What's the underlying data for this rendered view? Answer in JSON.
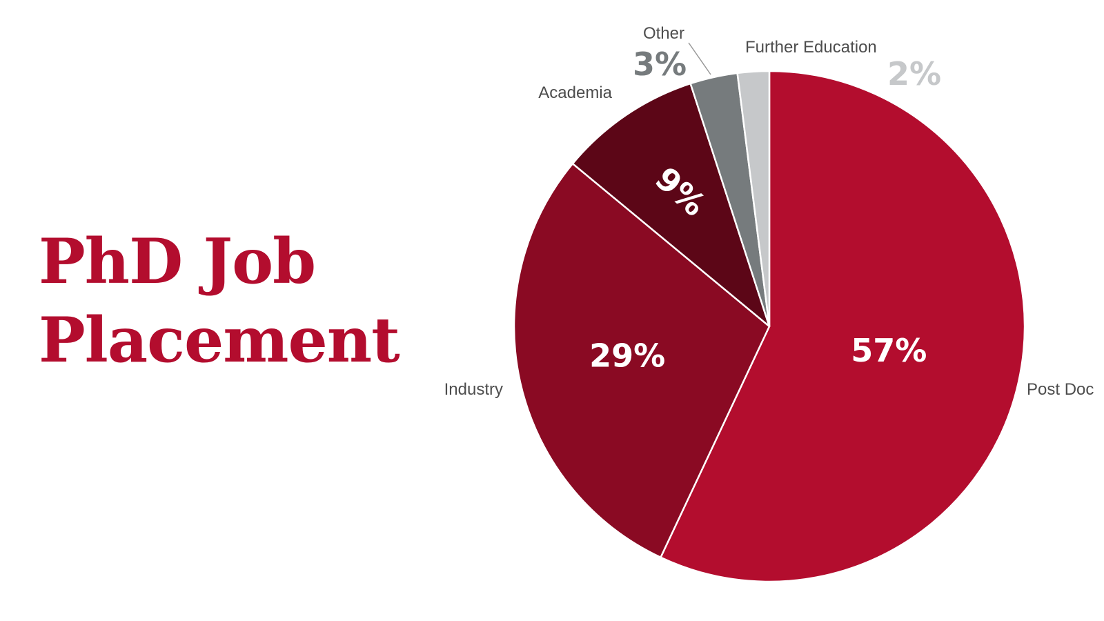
{
  "chart_data": {
    "type": "pie",
    "title": "PhD Job Placement",
    "title_lines": [
      "PhD Job",
      "Placement"
    ],
    "slices": [
      {
        "label": "Post Doc",
        "value": 57,
        "value_label": "57%",
        "color": "#b30d2e",
        "label_color": "#ffffff"
      },
      {
        "label": "Industry",
        "value": 29,
        "value_label": "29%",
        "color": "#8a0a23",
        "label_color": "#ffffff"
      },
      {
        "label": "Academia",
        "value": 9,
        "value_label": "9%",
        "color": "#5c0617",
        "label_color": "#ffffff"
      },
      {
        "label": "Other",
        "value": 3,
        "value_label": "3%",
        "color": "#767b7d",
        "label_color": "#767b7d"
      },
      {
        "label": "Further Education",
        "value": 2,
        "value_label": "2%",
        "color": "#c6c8ca",
        "label_color": "#c6c8ca"
      }
    ],
    "start_angle": "top",
    "direction": "clockwise",
    "legend": "none"
  }
}
